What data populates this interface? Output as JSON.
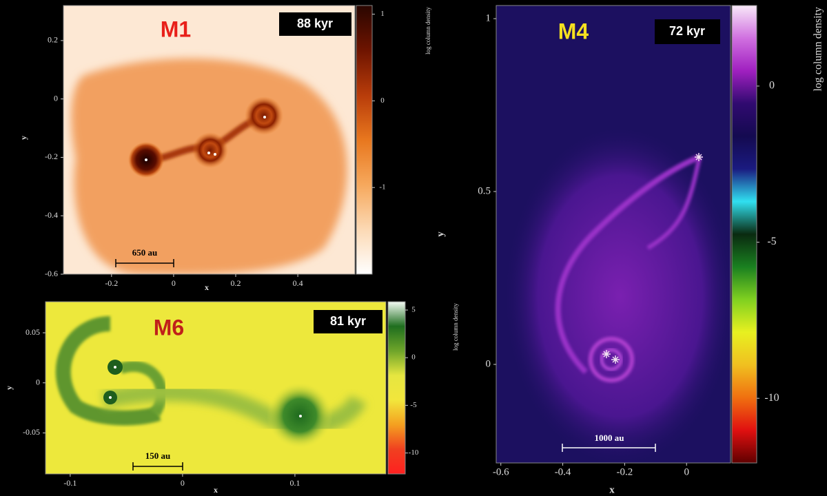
{
  "chart_data": [
    {
      "type": "heatmap",
      "title": "M1",
      "annotation": "88 kyr",
      "scale_bar": "650 au",
      "x_label": "x",
      "y_label": "y",
      "xlim": [
        -0.355,
        0.584
      ],
      "xticks": [
        -0.2,
        0,
        0.2,
        0.4
      ],
      "ylim": [
        -0.6,
        0.32
      ],
      "yticks": [
        -0.6,
        -0.4,
        -0.2,
        0,
        0.2
      ],
      "colorbar": {
        "label": "log column density",
        "lim": [
          -2,
          1.1
        ],
        "ticks": [
          -1,
          0,
          1
        ],
        "colors": [
          "#2a0600",
          "#6e1400",
          "#b83c0a",
          "#e8771e",
          "#f6a85c",
          "#fcd9b4",
          "#ffffff"
        ]
      }
    },
    {
      "type": "heatmap",
      "title": "M6",
      "annotation": "81 kyr",
      "scale_bar": "150 au",
      "x_label": "x",
      "y_label": "y",
      "xlim": [
        -0.122,
        0.181
      ],
      "xticks": [
        -0.1,
        0,
        0.1
      ],
      "ylim": [
        -0.091,
        0.081
      ],
      "yticks": [
        -0.05,
        0,
        0.05
      ],
      "colorbar": {
        "label": "log column density",
        "lim": [
          -12.2,
          5.87
        ],
        "ticks": [
          -10,
          -5,
          0,
          5
        ],
        "colors": [
          "#f4fbf4",
          "#1f6e1f",
          "#6fa52a",
          "#e6e640",
          "#f2e63c",
          "#f4a020",
          "#f04020",
          "#ff2020"
        ]
      }
    },
    {
      "type": "heatmap",
      "title": "M4",
      "annotation": "72 kyr",
      "scale_bar": "1000 au",
      "x_label": "x",
      "y_label": "y",
      "xlim": [
        -0.615,
        0.142
      ],
      "xticks": [
        -0.6,
        -0.4,
        -0.2,
        0
      ],
      "ylim": [
        -0.285,
        1.038
      ],
      "yticks": [
        0,
        0.5,
        1
      ],
      "colorbar": {
        "label": "log column density",
        "lim": [
          -12.07,
          2.58
        ],
        "ticks": [
          -10,
          -5,
          0
        ],
        "colors": [
          "#f8e8f8",
          "#d070e0",
          "#a020c0",
          "#300a70",
          "#140a50",
          "#1a1a80",
          "#30e0f0",
          "#0a2a10",
          "#1a8020",
          "#80d020",
          "#e8f020",
          "#f0c020",
          "#f07010",
          "#e01010",
          "#600000"
        ]
      }
    }
  ]
}
